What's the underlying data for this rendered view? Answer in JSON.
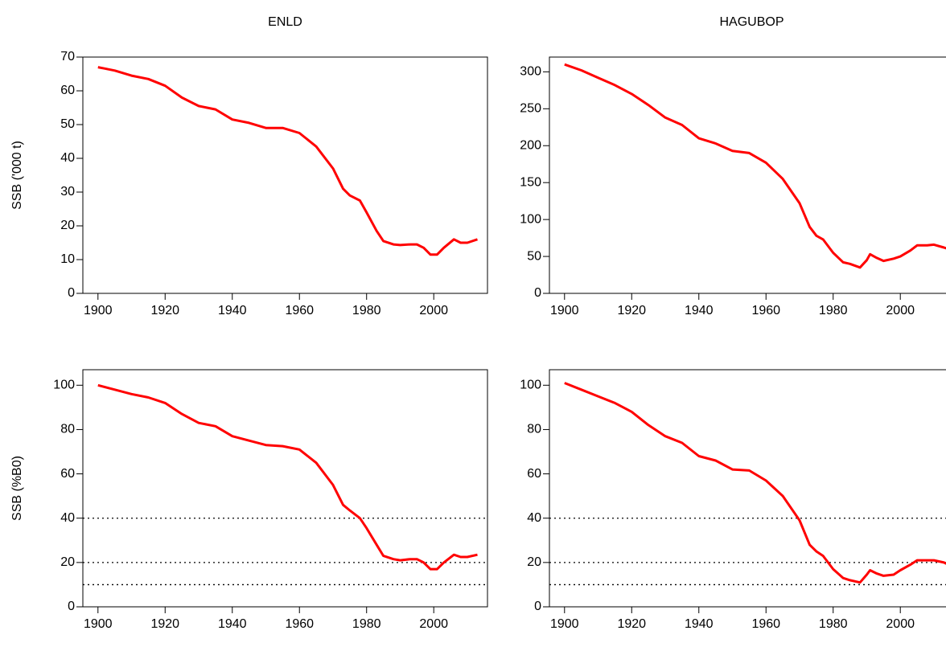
{
  "chart_data": [
    {
      "type": "line",
      "title": "ENLD",
      "ylabel": "SSB ('000 t)",
      "x": [
        1900,
        1905,
        1910,
        1915,
        1920,
        1925,
        1930,
        1935,
        1940,
        1945,
        1950,
        1955,
        1960,
        1965,
        1970,
        1973,
        1975,
        1978,
        1980,
        1983,
        1985,
        1988,
        1990,
        1993,
        1995,
        1997,
        1999,
        2001,
        2003,
        2006,
        2008,
        2010,
        2013
      ],
      "values": [
        67,
        66,
        64.5,
        63.5,
        61.5,
        58,
        55.5,
        54.5,
        51.5,
        50.5,
        49,
        49,
        47.5,
        43.5,
        37,
        31,
        29,
        27.5,
        24,
        18.5,
        15.5,
        14.5,
        14.3,
        14.5,
        14.5,
        13.5,
        11.5,
        11.5,
        13.5,
        16,
        15,
        15,
        16
      ],
      "color": "#ff0000",
      "xlim": [
        1895.5,
        2016
      ],
      "ylim": [
        0,
        70
      ],
      "xticks": [
        1900,
        1920,
        1940,
        1960,
        1980,
        2000
      ],
      "yticks": [
        0,
        10,
        20,
        30,
        40,
        50,
        60,
        70
      ]
    },
    {
      "type": "line",
      "title": "HAGUBOP",
      "x": [
        1900,
        1905,
        1910,
        1915,
        1920,
        1925,
        1930,
        1935,
        1940,
        1945,
        1950,
        1955,
        1960,
        1965,
        1970,
        1973,
        1975,
        1977,
        1980,
        1983,
        1985,
        1988,
        1990,
        1991,
        1993,
        1995,
        1998,
        2000,
        2003,
        2005,
        2008,
        2010,
        2013,
        2015
      ],
      "values": [
        310,
        302,
        292,
        282,
        270,
        255,
        238,
        228,
        210,
        203,
        193,
        190,
        177,
        155,
        122,
        90,
        78,
        73,
        55,
        42,
        40,
        35,
        45,
        53,
        48,
        44,
        47,
        50,
        58,
        65,
        65,
        66,
        62,
        59
      ],
      "color": "#ff0000",
      "xlim": [
        1895.5,
        2016
      ],
      "ylim": [
        0,
        320
      ],
      "xticks": [
        1900,
        1920,
        1940,
        1960,
        1980,
        2000
      ],
      "yticks": [
        0,
        50,
        100,
        150,
        200,
        250,
        300
      ]
    },
    {
      "type": "line",
      "ylabel": "SSB (%B0)",
      "x": [
        1900,
        1905,
        1910,
        1915,
        1920,
        1925,
        1930,
        1935,
        1940,
        1945,
        1950,
        1955,
        1960,
        1965,
        1970,
        1973,
        1975,
        1978,
        1980,
        1983,
        1985,
        1988,
        1990,
        1993,
        1995,
        1997,
        1999,
        2001,
        2003,
        2006,
        2008,
        2010,
        2013
      ],
      "values": [
        100,
        98,
        96,
        94.5,
        92,
        87,
        83,
        81.5,
        77,
        75,
        73,
        72.5,
        71,
        65,
        55,
        46,
        43.5,
        40,
        35.5,
        28,
        23,
        21.5,
        21,
        21.5,
        21.5,
        20,
        17,
        17,
        20,
        23.5,
        22.5,
        22.5,
        23.5
      ],
      "color": "#ff0000",
      "xlim": [
        1895.5,
        2016
      ],
      "ylim": [
        0,
        107
      ],
      "xticks": [
        1900,
        1920,
        1940,
        1960,
        1980,
        2000
      ],
      "yticks": [
        0,
        20,
        40,
        60,
        80,
        100
      ],
      "hlines": [
        10,
        20,
        40
      ]
    },
    {
      "type": "line",
      "x": [
        1900,
        1905,
        1910,
        1915,
        1920,
        1925,
        1930,
        1935,
        1940,
        1945,
        1950,
        1955,
        1960,
        1965,
        1970,
        1973,
        1975,
        1977,
        1980,
        1983,
        1985,
        1988,
        1990,
        1991,
        1993,
        1995,
        1998,
        2000,
        2003,
        2005,
        2008,
        2010,
        2013,
        2015
      ],
      "values": [
        101,
        98,
        95,
        92,
        88,
        82,
        77,
        74,
        68,
        66,
        62,
        61.5,
        57,
        50,
        39,
        28,
        25,
        23,
        17,
        13,
        12,
        11,
        14.5,
        16.5,
        15,
        14,
        14.5,
        16.5,
        19,
        21,
        21,
        21,
        20,
        18.5
      ],
      "color": "#ff0000",
      "xlim": [
        1895.5,
        2016
      ],
      "ylim": [
        0,
        107
      ],
      "xticks": [
        1900,
        1920,
        1940,
        1960,
        1980,
        2000
      ],
      "yticks": [
        0,
        20,
        40,
        60,
        80,
        100
      ],
      "hlines": [
        10,
        20,
        40
      ]
    }
  ]
}
